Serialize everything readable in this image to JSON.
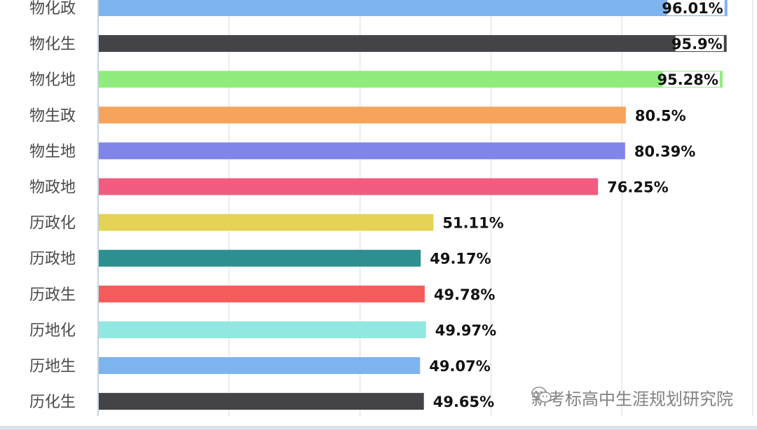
{
  "chart_data": {
    "type": "bar",
    "orientation": "horizontal",
    "categories": [
      "物化政",
      "物化生",
      "物化地",
      "物生政",
      "物生地",
      "物政地",
      "历政化",
      "历政地",
      "历政生",
      "历地化",
      "历地生",
      "历化生"
    ],
    "values": [
      96.01,
      95.9,
      95.28,
      80.5,
      80.39,
      76.25,
      51.11,
      49.17,
      49.78,
      49.97,
      49.07,
      49.65
    ],
    "value_labels": [
      "96.01%",
      "95.9%",
      "95.28%",
      "80.5%",
      "80.39%",
      "76.25%",
      "51.11%",
      "49.17%",
      "49.78%",
      "49.97%",
      "49.07%",
      "49.65%"
    ],
    "colors": [
      "#7eb4ee",
      "#434348",
      "#90ed7d",
      "#f7a35c",
      "#8085e9",
      "#f15c80",
      "#e4d354",
      "#2b908f",
      "#f45b5b",
      "#91e8e1",
      "#7eb4ee",
      "#434348"
    ],
    "xlim": [
      0,
      100
    ],
    "grid": true,
    "title": "",
    "xlabel": "",
    "ylabel": ""
  },
  "watermark": {
    "text": "新考标高中生涯规划研究院",
    "icon": "wechat-icon"
  }
}
